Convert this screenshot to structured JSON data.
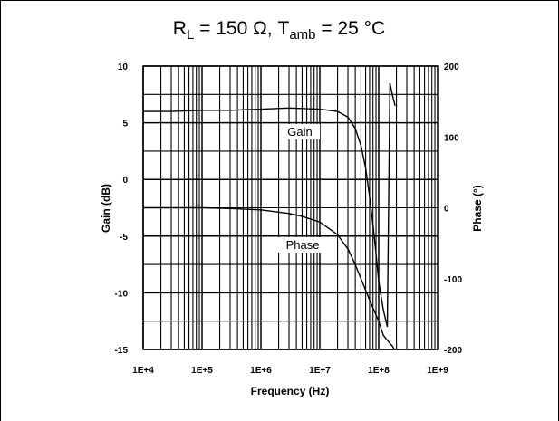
{
  "chart_data": {
    "type": "line",
    "title": {
      "r_symbol": "R",
      "r_sub": "L",
      "r_value": " = 150 Ω, ",
      "t_symbol": "T",
      "t_sub": "amb",
      "t_value": " = 25 °C"
    },
    "xlabel": "Frequency (Hz)",
    "ylabel_left": "Gain (dB)",
    "ylabel_right": "Phase (°)",
    "x_scale": "log",
    "xlim": [
      10000,
      1000000000
    ],
    "ylim_left": [
      -15,
      10
    ],
    "ylim_right": [
      -200,
      200
    ],
    "grid": true,
    "x_ticks": [
      {
        "value": 10000,
        "label": "1E+4"
      },
      {
        "value": 100000,
        "label": "1E+5"
      },
      {
        "value": 1000000,
        "label": "1E+6"
      },
      {
        "value": 10000000,
        "label": "1E+7"
      },
      {
        "value": 100000000,
        "label": "1E+8"
      },
      {
        "value": 1000000000,
        "label": "1E+9"
      }
    ],
    "y_ticks_left": [
      {
        "value": 10,
        "label": "10"
      },
      {
        "value": 5,
        "label": "5"
      },
      {
        "value": 0,
        "label": "0"
      },
      {
        "value": -5,
        "label": "-5"
      },
      {
        "value": -10,
        "label": "-10"
      },
      {
        "value": -15,
        "label": "-15"
      }
    ],
    "y_ticks_right": [
      {
        "value": 200,
        "label": "200"
      },
      {
        "value": 100,
        "label": "100"
      },
      {
        "value": 0,
        "label": "0"
      },
      {
        "value": -100,
        "label": "-100"
      },
      {
        "value": -200,
        "label": "-200"
      }
    ],
    "series": [
      {
        "name": "Gain",
        "axis": "left",
        "x": [
          10000,
          30000,
          100000,
          300000,
          1000000,
          3000000,
          10000000,
          20000000,
          30000000,
          40000000,
          50000000,
          60000000,
          70000000,
          80000000,
          90000000,
          100000000,
          120000000,
          140000000,
          155000000,
          170000000,
          190000000
        ],
        "y": [
          6.0,
          6.0,
          6.1,
          6.1,
          6.2,
          6.3,
          6.2,
          6.0,
          5.5,
          4.5,
          3.0,
          1.0,
          -1.5,
          -4.0,
          -6.5,
          -9.0,
          -11.5,
          -13.0,
          8.5,
          7.5,
          6.5
        ]
      },
      {
        "name": "Phase",
        "axis": "right",
        "x": [
          10000,
          100000,
          300000,
          1000000,
          3000000,
          5000000,
          10000000,
          20000000,
          30000000,
          40000000,
          50000000,
          70000000,
          100000000,
          120000000,
          150000000,
          170000000,
          185000000
        ],
        "y": [
          0,
          0,
          -1,
          -3,
          -8,
          -12,
          -20,
          -38,
          -58,
          -80,
          -100,
          -130,
          -160,
          -180,
          -190,
          -195,
          -200
        ]
      }
    ]
  }
}
